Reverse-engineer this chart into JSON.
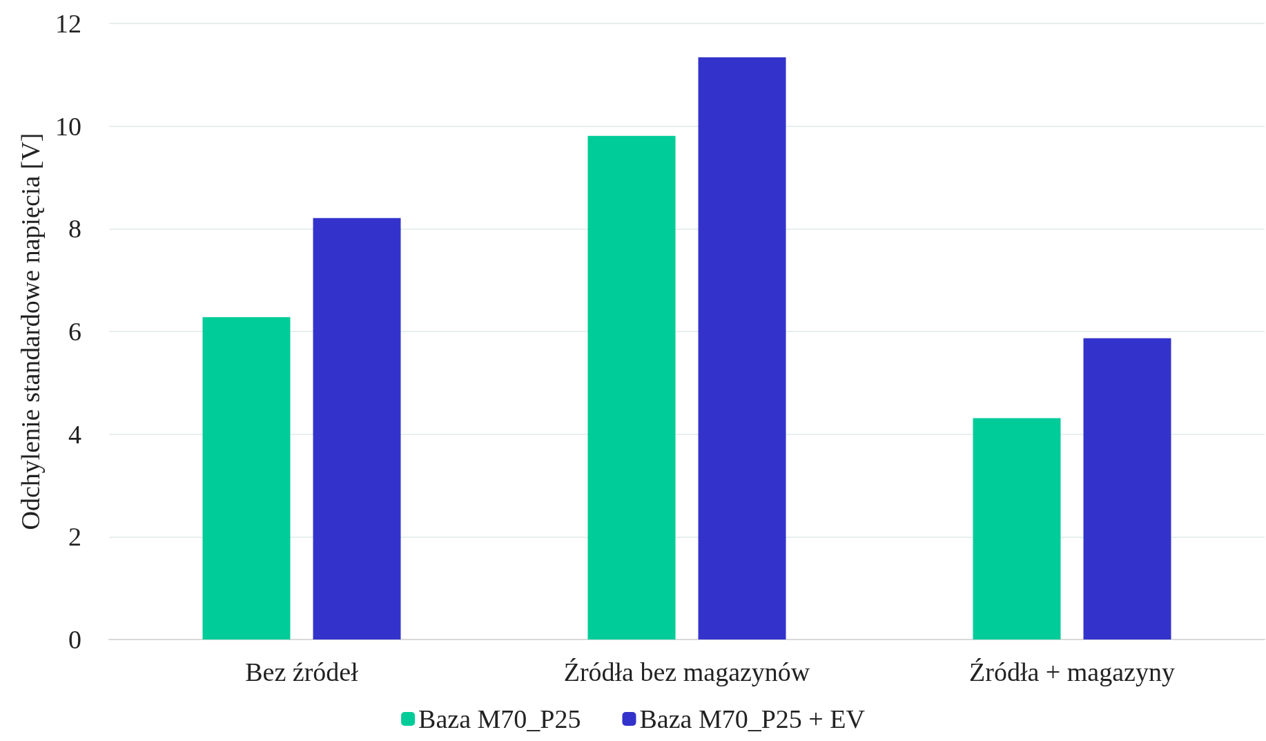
{
  "chart_data": {
    "type": "bar",
    "ylabel": "Odchylenie standardowe napięcia [V]",
    "categories": [
      "Bez źródeł",
      "Źródła bez magazynów",
      "Źródła + magazyny"
    ],
    "series": [
      {
        "name": "Baza M70_P25",
        "color": "#00cc99",
        "values": [
          6.28,
          9.81,
          4.31
        ]
      },
      {
        "name": "Baza M70_P25 + EV",
        "color": "#3333cc",
        "values": [
          8.21,
          11.34,
          5.87
        ]
      }
    ],
    "ylim": [
      0,
      12
    ],
    "yticks": [
      0,
      2,
      4,
      6,
      8,
      10,
      12
    ],
    "grid": "y",
    "legend": "bottom"
  }
}
